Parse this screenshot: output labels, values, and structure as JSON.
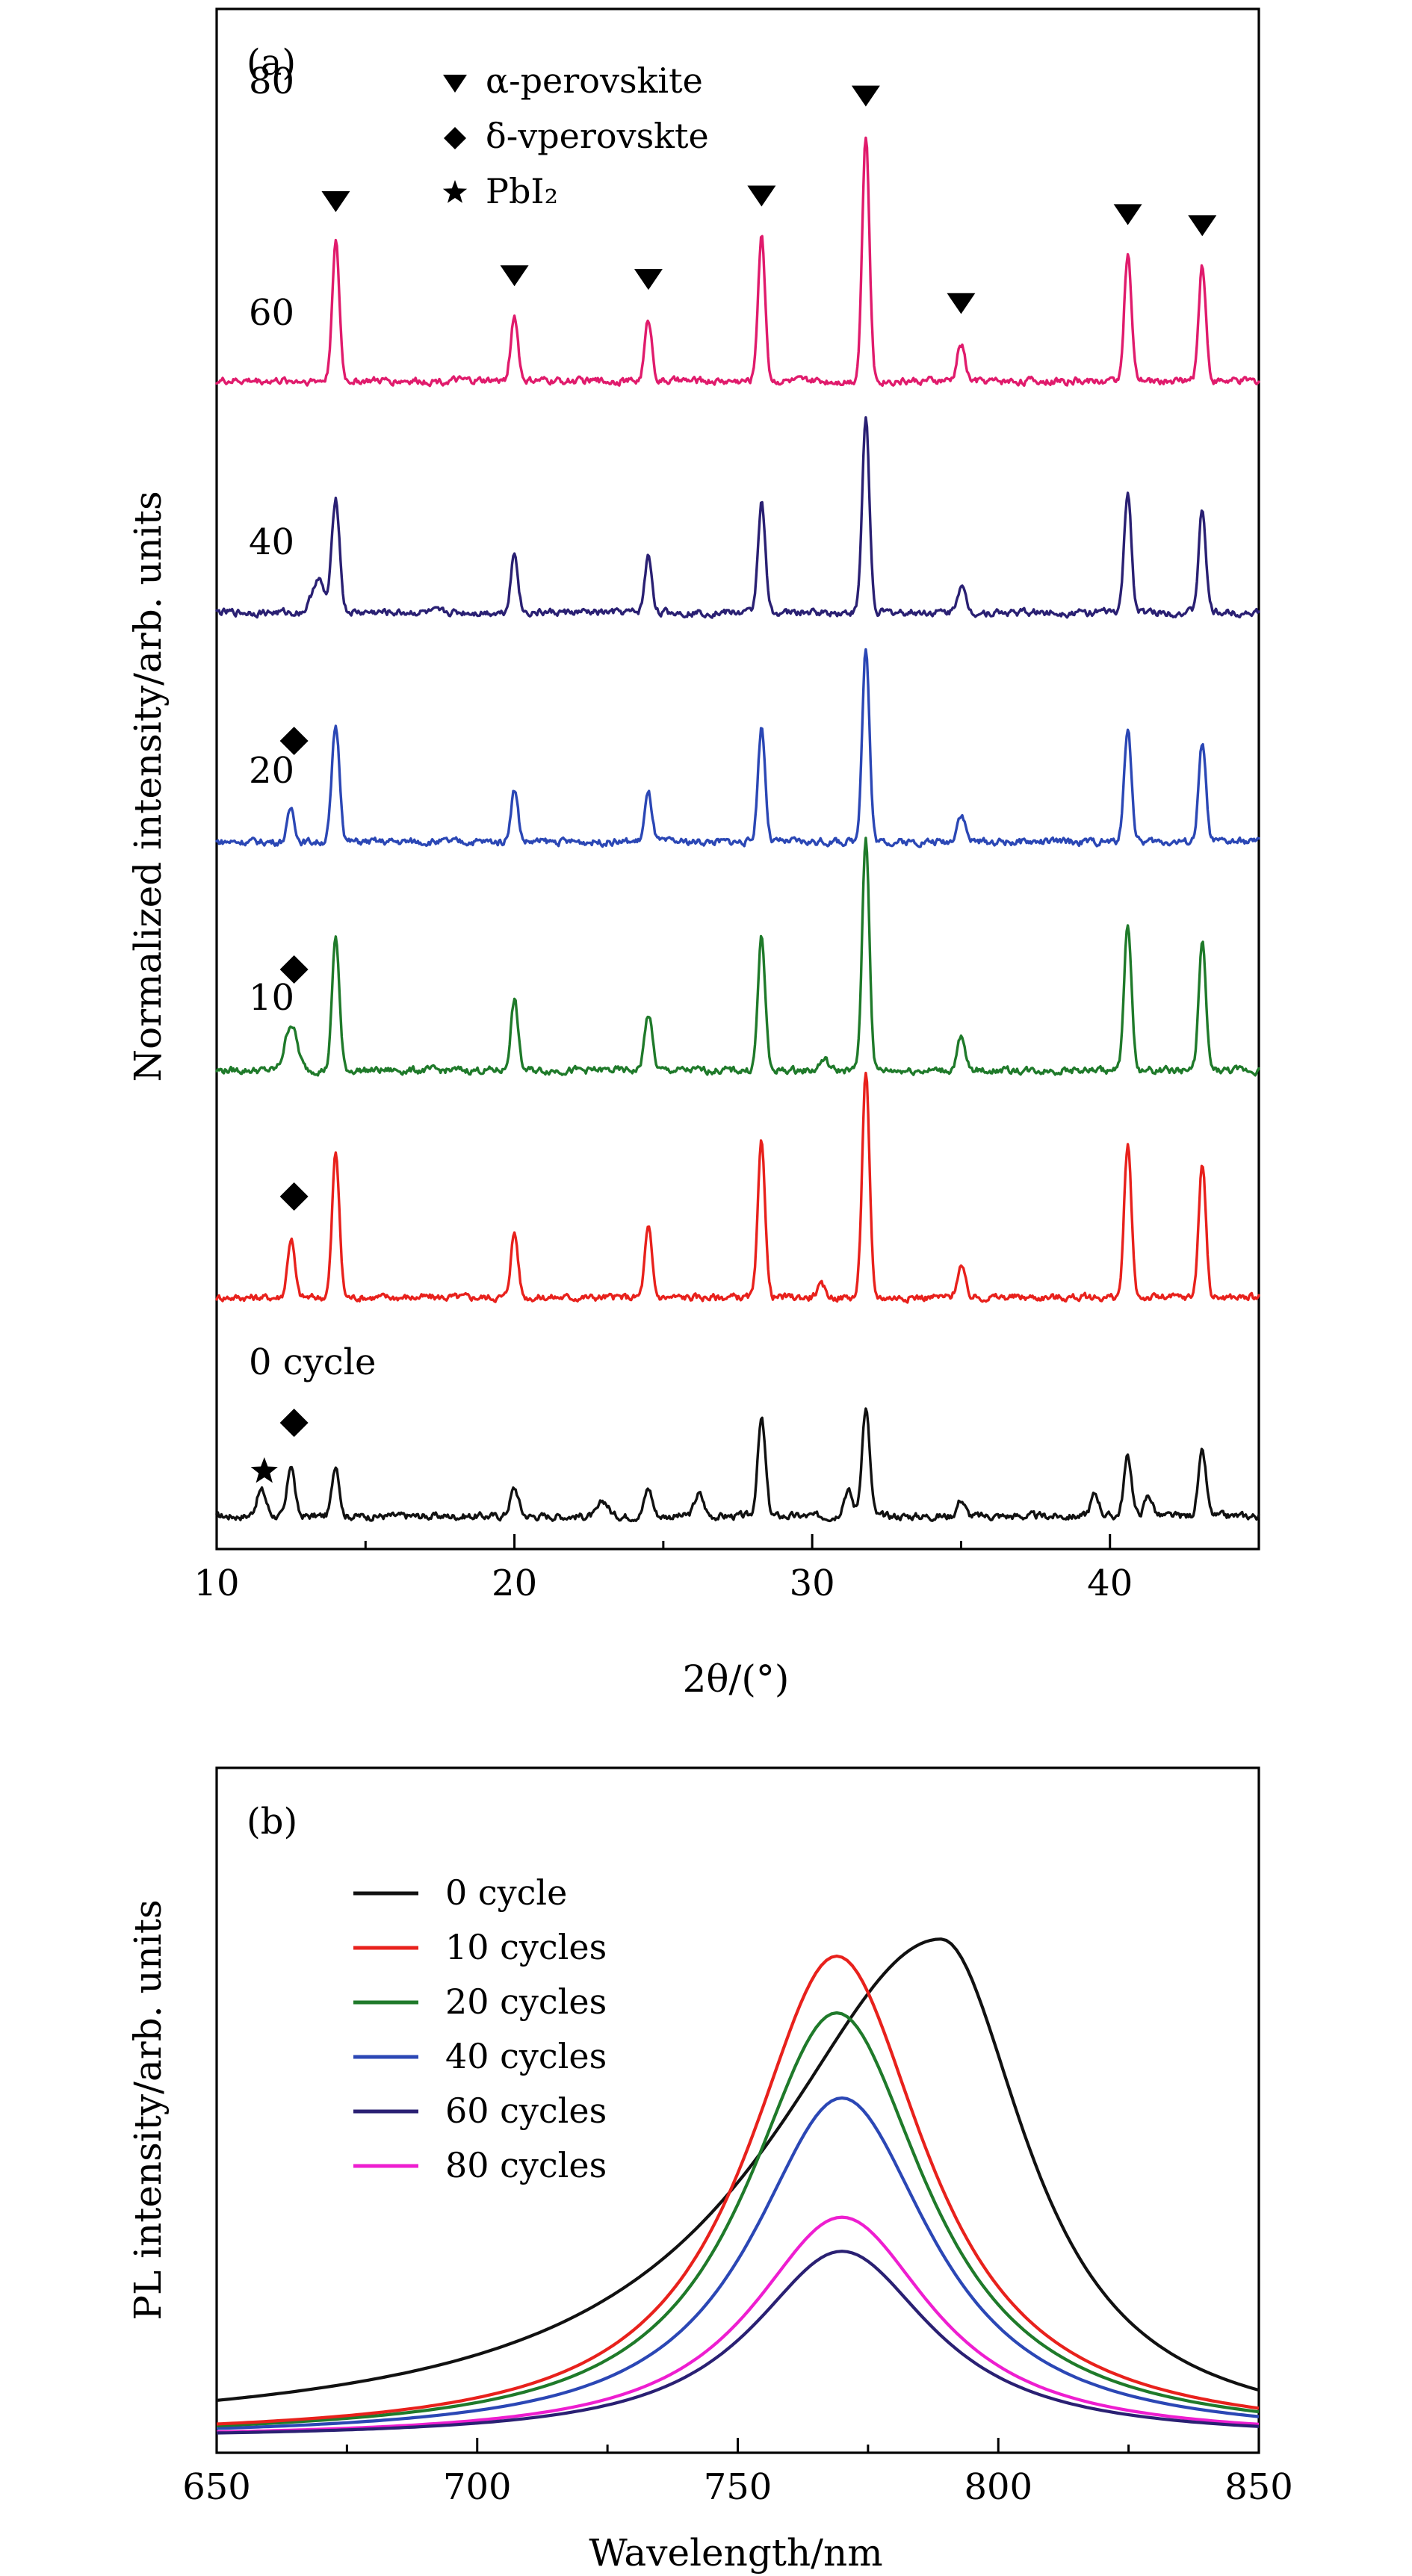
{
  "chart_data": [
    {
      "type": "line",
      "panel_label": "(a)",
      "xlabel": "2θ/(°)",
      "ylabel": "Normalized intensity/arb. units",
      "xlim": [
        10,
        45
      ],
      "xticks": [
        10,
        20,
        30,
        40
      ],
      "legend": [
        {
          "marker": "triangle-down",
          "label": "α-perovskite"
        },
        {
          "marker": "diamond",
          "label": "δ-vperovskte"
        },
        {
          "marker": "star",
          "label": "PbI₂"
        }
      ],
      "series": [
        {
          "name": "0 cycle",
          "label": "0 cycle",
          "color": "#111111",
          "baseline": 0,
          "peaks": [
            [
              11.5,
              0.14,
              0.16
            ],
            [
              12.5,
              0.28,
              0.12
            ],
            [
              14.0,
              0.28,
              0.12
            ],
            [
              20.0,
              0.15,
              0.14
            ],
            [
              23.0,
              0.08,
              0.16
            ],
            [
              24.5,
              0.15,
              0.13
            ],
            [
              26.2,
              0.12,
              0.15
            ],
            [
              28.3,
              0.52,
              0.13
            ],
            [
              31.2,
              0.14,
              0.15
            ],
            [
              31.8,
              0.58,
              0.13
            ],
            [
              35.0,
              0.09,
              0.13
            ],
            [
              39.5,
              0.12,
              0.14
            ],
            [
              40.6,
              0.32,
              0.13
            ],
            [
              41.3,
              0.11,
              0.14
            ],
            [
              43.1,
              0.34,
              0.13
            ]
          ],
          "markers": [
            {
              "x": 11.6,
              "symbol": "star"
            },
            {
              "x": 12.6,
              "symbol": "diamond"
            }
          ]
        },
        {
          "name": "10",
          "label": "10",
          "color": "#e8211c",
          "baseline": 1,
          "peaks": [
            [
              12.5,
              0.32,
              0.12
            ],
            [
              14.0,
              0.78,
              0.12
            ],
            [
              20.0,
              0.35,
              0.12
            ],
            [
              24.5,
              0.37,
              0.12
            ],
            [
              28.3,
              0.84,
              0.12
            ],
            [
              30.3,
              0.06,
              0.14
            ],
            [
              31.8,
              1.22,
              0.12
            ],
            [
              35.0,
              0.17,
              0.13
            ],
            [
              40.6,
              0.82,
              0.12
            ],
            [
              43.1,
              0.72,
              0.12
            ]
          ],
          "markers": [
            {
              "x": 12.6,
              "symbol": "diamond"
            }
          ]
        },
        {
          "name": "20",
          "label": "20",
          "color": "#1f7a2a",
          "baseline": 2,
          "peaks": [
            [
              12.5,
              0.25,
              0.2
            ],
            [
              14.0,
              0.72,
              0.12
            ],
            [
              20.0,
              0.38,
              0.12
            ],
            [
              24.5,
              0.3,
              0.13
            ],
            [
              28.3,
              0.72,
              0.12
            ],
            [
              30.4,
              0.06,
              0.14
            ],
            [
              31.8,
              1.25,
              0.12
            ],
            [
              35.0,
              0.17,
              0.13
            ],
            [
              40.6,
              0.8,
              0.12
            ],
            [
              43.1,
              0.68,
              0.12
            ]
          ],
          "markers": [
            {
              "x": 12.6,
              "symbol": "diamond"
            }
          ]
        },
        {
          "name": "40",
          "label": "40",
          "color": "#2b47b5",
          "baseline": 3,
          "peaks": [
            [
              12.5,
              0.18,
              0.12
            ],
            [
              14.0,
              0.62,
              0.13
            ],
            [
              20.0,
              0.28,
              0.12
            ],
            [
              24.5,
              0.26,
              0.12
            ],
            [
              28.3,
              0.62,
              0.12
            ],
            [
              31.8,
              1.05,
              0.12
            ],
            [
              35.0,
              0.15,
              0.14
            ],
            [
              40.6,
              0.62,
              0.12
            ],
            [
              43.1,
              0.53,
              0.12
            ]
          ],
          "markers": [
            {
              "x": 12.6,
              "symbol": "diamond"
            }
          ]
        },
        {
          "name": "60",
          "label": "60",
          "color": "#2a2073",
          "baseline": 4,
          "peaks": [
            [
              13.4,
              0.18,
              0.2
            ],
            [
              14.0,
              0.62,
              0.13
            ],
            [
              20.0,
              0.32,
              0.12
            ],
            [
              24.5,
              0.3,
              0.12
            ],
            [
              28.3,
              0.6,
              0.12
            ],
            [
              31.8,
              1.05,
              0.12
            ],
            [
              35.0,
              0.14,
              0.14
            ],
            [
              40.6,
              0.65,
              0.12
            ],
            [
              43.1,
              0.55,
              0.12
            ]
          ],
          "markers": []
        },
        {
          "name": "80",
          "label": "80",
          "color": "#e01b6c",
          "baseline": 5,
          "peaks": [
            [
              14.0,
              0.75,
              0.12
            ],
            [
              20.0,
              0.35,
              0.12
            ],
            [
              24.5,
              0.33,
              0.12
            ],
            [
              28.3,
              0.78,
              0.12
            ],
            [
              31.8,
              1.32,
              0.12
            ],
            [
              35.0,
              0.2,
              0.13
            ],
            [
              40.6,
              0.68,
              0.12
            ],
            [
              43.1,
              0.62,
              0.12
            ]
          ],
          "markers": [
            {
              "x": 14.0,
              "symbol": "triangle-down"
            },
            {
              "x": 20.0,
              "symbol": "triangle-down"
            },
            {
              "x": 24.5,
              "symbol": "triangle-down"
            },
            {
              "x": 28.3,
              "symbol": "triangle-down"
            },
            {
              "x": 31.8,
              "symbol": "triangle-down"
            },
            {
              "x": 35.0,
              "symbol": "triangle-down"
            },
            {
              "x": 40.6,
              "symbol": "triangle-down"
            },
            {
              "x": 43.1,
              "symbol": "triangle-down"
            }
          ]
        }
      ]
    },
    {
      "type": "line",
      "panel_label": "(b)",
      "xlabel": "Wavelength/nm",
      "ylabel": "PL intensity/arb. units",
      "xlim": [
        650,
        850
      ],
      "xticks": [
        650,
        700,
        750,
        800,
        850
      ],
      "ylim": [
        0,
        1.0
      ],
      "series": [
        {
          "name": "0 cycle",
          "color": "#111111",
          "peak": 789,
          "height": 0.88,
          "fwhm_left": 80,
          "fwhm_right": 40
        },
        {
          "name": "10 cycles",
          "color": "#e8211c",
          "peak": 769,
          "height": 0.85,
          "fwhm_left": 42,
          "fwhm_right": 42
        },
        {
          "name": "20 cycles",
          "color": "#1f7a2a",
          "peak": 769,
          "height": 0.75,
          "fwhm_left": 42,
          "fwhm_right": 42
        },
        {
          "name": "40 cycles",
          "color": "#2b47b5",
          "peak": 770,
          "height": 0.6,
          "fwhm_left": 42,
          "fwhm_right": 42
        },
        {
          "name": "60 cycles",
          "color": "#2a2073",
          "peak": 770,
          "height": 0.33,
          "fwhm_left": 42,
          "fwhm_right": 42
        },
        {
          "name": "80 cycles",
          "color": "#ee1ed0",
          "peak": 770,
          "height": 0.39,
          "fwhm_left": 42,
          "fwhm_right": 42
        }
      ]
    }
  ]
}
